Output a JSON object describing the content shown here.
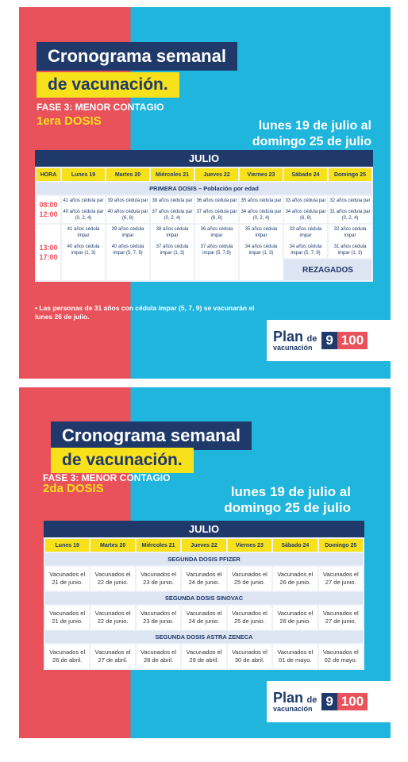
{
  "poster1": {
    "title_line1": "Cronograma semanal",
    "title_line2": "de vacunación.",
    "fase": "FASE 3: MENOR CONTAGIO",
    "dosis": "1era DOSIS",
    "date_line1": "lunes 19 de julio al",
    "date_line2": "domingo 25 de julio",
    "month": "JULIO",
    "hora_header": "HORA",
    "days": [
      "Lunes 19",
      "Martes 20",
      "Miércoles 21",
      "Jueves 22",
      "Viernes 23",
      "Sábado 24",
      "Domingo 25"
    ],
    "section": "PRIMERA DOSIS – Población por edad",
    "slot1_time": [
      "08:00",
      "12:00"
    ],
    "slot1_cells": [
      [
        "41 años cédula par",
        "40 años cédula par (0, 2, 4)"
      ],
      [
        "39 años cédula par",
        "40 años cédula par (6, 8)"
      ],
      [
        "38 años cédula par",
        "37 años cédula par (0, 2, 4)"
      ],
      [
        "36 años cédula par",
        "37 años cédula par (6, 8)"
      ],
      [
        "35 años cédula par",
        "34 años cédula par (0, 2, 4)"
      ],
      [
        "33 años cédula par",
        "34 años cédula par (6, 8)"
      ],
      [
        "32 años cédula par",
        "31 años cédula par (0, 2, 4)"
      ]
    ],
    "slot2_time": [
      "13:00",
      "17:00"
    ],
    "slot2_cells": [
      [
        "41 años cédula impar",
        "40 años cédula impar (1, 3)"
      ],
      [
        "39 años cédula impar",
        "40 años cédula impar (5, 7, 9)"
      ],
      [
        "38 años cédula impar",
        "37 años cédula impar (1, 3)"
      ],
      [
        "36 años cédula impar",
        "37 años cédula impar (5, 7,9)"
      ],
      [
        "35 años cédula impar",
        "34 años cédula impar (1, 3)"
      ],
      [
        "33 años cédula impar",
        "34 años cédula impar (5, 7, 9)"
      ],
      [
        "32 años cédula impar",
        "31 años cédula impar (1, 3)"
      ]
    ],
    "rezagados": "REZAGADOS",
    "note": "Las personas de 31 años con cédula impar (5, 7, 9) se vacunarán el lunes 26 de julio.",
    "logo": {
      "plan": "Plan",
      "de": "de",
      "vacunacion": "vacunación",
      "n9": "9",
      "n100": "100"
    }
  },
  "poster2": {
    "title_line1": "Cronograma semanal",
    "title_line2": "de vacunación.",
    "fase": "FASE 3: MENOR CONTAGIO",
    "dosis": "2da DOSIS",
    "date_line1": "lunes 19 de julio al",
    "date_line2": "domingo 25 de julio",
    "month": "JULIO",
    "days": [
      "Lunes 19",
      "Martes 20",
      "Miércoles 21",
      "Jueves 22",
      "Viernes 23",
      "Sábado 24",
      "Domingo 25"
    ],
    "sections": [
      {
        "name": "SEGUNDA DOSIS PFIZER",
        "cells": [
          "Vacunados el 21 de junio.",
          "Vacunados el 22 de junio.",
          "Vacunados el 23 de junio.",
          "Vacunados el 24 de junio.",
          "Vacunados el 25 de junio.",
          "Vacunados el 26 de junio.",
          "Vacunados el 27 de junio."
        ]
      },
      {
        "name": "SEGUNDA DOSIS SINOVAC",
        "cells": [
          "Vacunados el 21 de junio.",
          "Vacunados el 22 de junio.",
          "Vacunados el 23 de junio.",
          "Vacunados el 24 de junio.",
          "Vacunados el 25 de junio.",
          "Vacunados el 26 de junio.",
          "Vacunados el 27 de junio."
        ]
      },
      {
        "name": "SEGUNDA DOSIS ASTRA ZENECA",
        "cells": [
          "Vacunados el 26 de abril.",
          "Vacunados el 27 de abril.",
          "Vacunados el 28 de abril.",
          "Vacunados el 29 de abril.",
          "Vacunados el 30 de abril.",
          "Vacunados el 01 de mayo.",
          "Vacunados el 02 de mayo."
        ]
      }
    ],
    "logo": {
      "plan": "Plan",
      "de": "de",
      "vacunacion": "vacunación",
      "n9": "9",
      "n100": "100"
    }
  },
  "colors": {
    "red": "#e9525b",
    "blue": "#1fb5dd",
    "navy": "#1f3a6a",
    "yellow": "#f7e11b"
  }
}
